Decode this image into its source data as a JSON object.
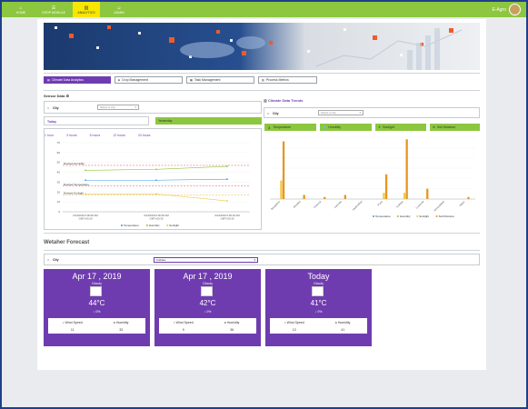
{
  "nav": {
    "items": [
      {
        "label": "HOME",
        "icon": "home-icon"
      },
      {
        "label": "CROP MODULE",
        "icon": "crop-icon"
      },
      {
        "label": "ANALYTICS",
        "icon": "analytics-icon",
        "active": true
      },
      {
        "label": "ADMIN",
        "icon": "admin-icon"
      }
    ],
    "user_name": "E-Agro"
  },
  "tabs": [
    {
      "label": "Climate Data Analytics",
      "active": true
    },
    {
      "label": "Crop Management"
    },
    {
      "label": "Task Management"
    },
    {
      "label": "Process Metrics"
    }
  ],
  "sensor": {
    "title": "Sensor Data ⚙",
    "city_label": "City",
    "city_placeholder": "Select a City",
    "today_label": "Today",
    "yesterday_label": "Yesterday",
    "time_filters": [
      "1 hour",
      "3 hours",
      "6 hours",
      "12 hours",
      "24 hours"
    ]
  },
  "trends": {
    "title": "Climate Data Trends",
    "city_label": "City",
    "city_placeholder": "Select a City",
    "category_tabs": [
      "Temperature",
      "Humidity",
      "Sunlight",
      "Soil Moisture"
    ]
  },
  "chart_data": [
    {
      "type": "line",
      "x": [
        "6/14/2019 6:00:00 AM GMT+05:30",
        "6/14/2019 6:00:05 AM GMT+05:30",
        "6/14/2019 6:00:10 AM GMT+05:30"
      ],
      "ylim": [
        0,
        70
      ],
      "yticks": [
        "0",
        "10",
        "20",
        "30",
        "40",
        "50",
        "60",
        "70"
      ],
      "series": [
        {
          "name": "Temperature",
          "color": "#3b9be0",
          "values": [
            32,
            32,
            33
          ]
        },
        {
          "name": "Humidity",
          "color": "#8dc63f",
          "values": [
            42,
            43,
            46
          ]
        },
        {
          "name": "Sunlight",
          "color": "#f2c744",
          "values": [
            18,
            18,
            11
          ]
        }
      ],
      "annotations": [
        {
          "label": "Desired Humidity",
          "y": 47,
          "color": "#e05050"
        },
        {
          "label": "Desired Temperature",
          "y": 26,
          "color": "#e05050"
        },
        {
          "label": "Desired Sunlight",
          "y": 17,
          "color": "#e0b040"
        }
      ],
      "legend": "bottom"
    },
    {
      "type": "bar",
      "categories": [
        "Bangalore",
        "Mumbai",
        "Chennai",
        "Calcutta",
        "Hyderabad",
        "Pune",
        "Kolkata",
        "Lucknow",
        "Ahmedabad",
        "Jaipur"
      ],
      "series": [
        {
          "name": "Temperature",
          "color": "#3b9be0",
          "values": [
            0,
            0,
            0,
            0,
            0,
            0,
            0,
            0,
            0,
            0
          ]
        },
        {
          "name": "Humidity",
          "color": "#8dc63f",
          "values": [
            0,
            0,
            0,
            0,
            0,
            0,
            0,
            0,
            0,
            0
          ]
        },
        {
          "name": "Sunlight",
          "color": "#f2c744",
          "values": [
            9,
            0,
            0,
            0,
            0,
            3,
            3,
            0,
            0,
            0
          ]
        },
        {
          "name": "Soil Moisture",
          "color": "#e8961e",
          "values": [
            28,
            2,
            1,
            2,
            0,
            12,
            29,
            5,
            0,
            1
          ]
        }
      ],
      "ylim": [
        0,
        30
      ],
      "legend": "bottom"
    }
  ],
  "forecast": {
    "title": "Wetaher Forecast",
    "city_label": "City",
    "city_value": "Kolkata",
    "cards": [
      {
        "date": "Apr 17 , 2019",
        "condition": "Cloudy",
        "temp": "44°C",
        "pct": "↓ 0%",
        "wind_label": "Wind Speed",
        "humidity_label": "Humidity",
        "wind": "11",
        "humidity": "33"
      },
      {
        "date": "Apr 17 , 2019",
        "condition": "Cloudy",
        "temp": "42°C",
        "pct": "↓ 0%",
        "wind_label": "Wind Speed",
        "humidity_label": "Humidity",
        "wind": "9",
        "humidity": "36"
      },
      {
        "date": "Today",
        "condition": "Cloudy",
        "temp": "41°C",
        "pct": "↓ 0%",
        "wind_label": "Wind Speed",
        "humidity_label": "Humidity",
        "wind": "13",
        "humidity": "41"
      }
    ]
  },
  "colors": {
    "green": "#8dc63f",
    "purple": "#6f3cb0",
    "yellow": "#f7e600"
  }
}
